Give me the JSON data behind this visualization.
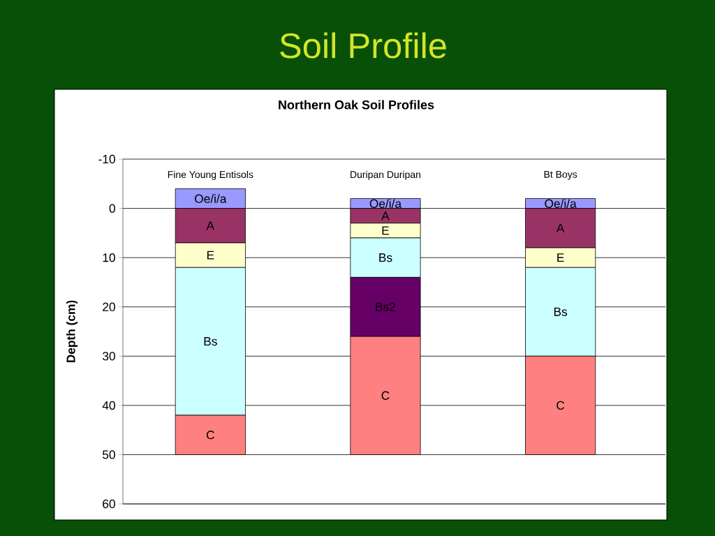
{
  "chart_data": {
    "type": "bar",
    "title": "Soil Profile",
    "subtitle": "Northern Oak Soil Profiles",
    "ylabel": "Depth (cm)",
    "categories": [
      "Fine Young Entisols",
      "Duripan Duripan",
      "Bt Boys"
    ],
    "series": [
      {
        "name": "Oe/i/a",
        "color": "#9999ff",
        "base": [
          -4,
          -2,
          -2
        ],
        "values": [
          4,
          2,
          2
        ]
      },
      {
        "name": "A",
        "color": "#993366",
        "base": [
          0,
          0,
          0
        ],
        "values": [
          7,
          3,
          8
        ]
      },
      {
        "name": "E",
        "color": "#ffffcc",
        "base": [
          7,
          3,
          8
        ],
        "values": [
          5,
          3,
          4
        ]
      },
      {
        "name": "Bs",
        "color": "#ccffff",
        "base": [
          12,
          6,
          12
        ],
        "values": [
          30,
          8,
          18
        ]
      },
      {
        "name": "Bs2",
        "color": "#660066",
        "base": [
          null,
          14,
          null
        ],
        "values": [
          null,
          12,
          null
        ]
      },
      {
        "name": "C",
        "color": "#ff8080",
        "base": [
          42,
          26,
          30
        ],
        "values": [
          8,
          24,
          20
        ]
      }
    ],
    "ylim": [
      60,
      -10
    ],
    "yticks": [
      -10,
      0,
      10,
      20,
      30,
      40,
      50,
      60
    ],
    "grid": "y"
  }
}
